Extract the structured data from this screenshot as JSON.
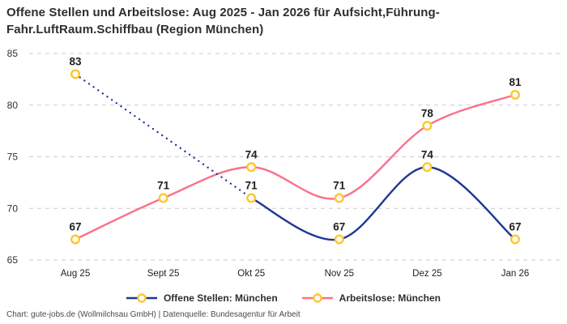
{
  "title": {
    "line1": "Offene Stellen und Arbeitslose: Aug 2025 - Jan 2026 für Aufsicht,Führung-",
    "line2": "Fahr.LuftRaum.Schiffbau (Region München)"
  },
  "footer": "Chart: gute-jobs.de (Wollmilchsau GmbH) | Datenquelle: Bundesagentur für Arbeit",
  "legend": {
    "items": [
      {
        "label": "Offene Stellen: München",
        "color": "#1e3796"
      },
      {
        "label": "Arbeitslose: München",
        "color": "#fa7189"
      }
    ]
  },
  "chart_data": {
    "type": "line",
    "title": "Offene Stellen und Arbeitslose: Aug 2025 - Jan 2026 für Aufsicht,Führung-Fahr.LuftRaum.Schiffbau (Region München)",
    "categories": [
      "Aug 25",
      "Sept 25",
      "Okt 25",
      "Nov 25",
      "Dez 25",
      "Jan 26"
    ],
    "series": [
      {
        "name": "Offene Stellen: München",
        "color": "#1e3796",
        "values": [
          83,
          null,
          71,
          67,
          74,
          67
        ],
        "line_style": "solid",
        "gap_style": "dotted"
      },
      {
        "name": "Arbeitslose: München",
        "color": "#fa7189",
        "values": [
          67,
          71,
          74,
          71,
          78,
          81
        ],
        "line_style": "solid"
      }
    ],
    "yticks": [
      65,
      70,
      75,
      80,
      85
    ],
    "ylim": [
      65,
      85
    ],
    "grid": "dashed-horizontal",
    "legend_position": "bottom",
    "marker": {
      "shape": "circle",
      "stroke": "#ffc62e",
      "fill": "#ffffff"
    },
    "data_labels": true,
    "colors": {
      "grid": "#cbcbcb",
      "tick": "#333333",
      "data_label": "#1f1f1f"
    }
  }
}
